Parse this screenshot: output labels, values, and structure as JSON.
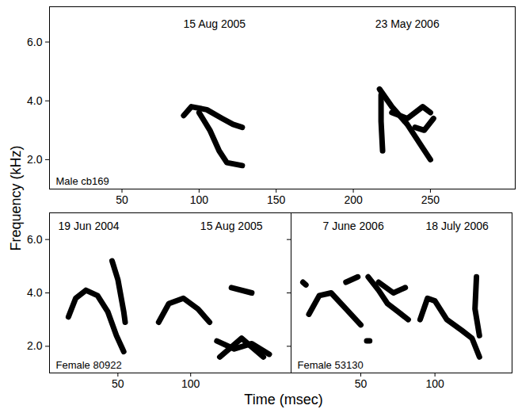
{
  "figure": {
    "x_label": "Time (msec)",
    "y_label": "Frequency (kHz)"
  },
  "chart_data": [
    {
      "type": "line",
      "label": "Male cb169",
      "color": "#000000",
      "xlim": [
        3,
        305
      ],
      "ylim": [
        1.0,
        7.2
      ],
      "xticks": [
        50,
        100,
        150,
        200,
        250
      ],
      "yticks": [
        2,
        4,
        6
      ],
      "annotations": [
        {
          "text": "15 Aug 2005",
          "x": 110,
          "y": 6.6
        },
        {
          "text": "23 May 2006",
          "x": 235,
          "y": 6.6
        }
      ],
      "traces": [
        {
          "x": [
            90,
            95,
            105,
            115,
            122,
            128
          ],
          "y": [
            3.5,
            3.8,
            3.7,
            3.4,
            3.2,
            3.1
          ]
        },
        {
          "x": [
            100,
            107,
            113,
            118,
            128
          ],
          "y": [
            3.6,
            3.0,
            2.3,
            1.9,
            1.8
          ]
        },
        {
          "x": [
            217,
            225,
            235,
            245,
            250
          ],
          "y": [
            4.4,
            3.8,
            3.2,
            2.4,
            2.0
          ]
        },
        {
          "x": [
            218,
            218,
            219
          ],
          "y": [
            4.2,
            3.3,
            2.3
          ]
        },
        {
          "x": [
            225,
            235,
            245,
            250
          ],
          "y": [
            3.6,
            3.4,
            3.8,
            3.6
          ]
        },
        {
          "x": [
            240,
            246,
            252
          ],
          "y": [
            3.1,
            3.0,
            3.4
          ]
        }
      ]
    },
    {
      "type": "line",
      "label": "Female 80922",
      "color": "#000000",
      "xlim": [
        3,
        169
      ],
      "ylim": [
        1.0,
        7.0
      ],
      "xticks": [
        50,
        100
      ],
      "yticks": [
        2,
        4,
        6
      ],
      "annotations": [
        {
          "text": "19 Jun 2004",
          "x": 30,
          "y": 6.5
        },
        {
          "text": "15 Aug 2005",
          "x": 128,
          "y": 6.5
        }
      ],
      "traces": [
        {
          "x": [
            16,
            21,
            28,
            36,
            43,
            49,
            54
          ],
          "y": [
            3.1,
            3.8,
            4.1,
            3.9,
            3.3,
            2.4,
            1.8
          ]
        },
        {
          "x": [
            46,
            50,
            54,
            55
          ],
          "y": [
            5.2,
            4.5,
            3.3,
            2.9
          ]
        },
        {
          "x": [
            78,
            85,
            95,
            105,
            113
          ],
          "y": [
            2.9,
            3.6,
            3.8,
            3.4,
            2.9
          ]
        },
        {
          "x": [
            128,
            142
          ],
          "y": [
            4.2,
            4.0
          ]
        },
        {
          "x": [
            118,
            130,
            142,
            154
          ],
          "y": [
            2.2,
            1.9,
            2.1,
            1.7
          ]
        },
        {
          "x": [
            120,
            135,
            150
          ],
          "y": [
            1.6,
            2.3,
            1.6
          ]
        }
      ]
    },
    {
      "type": "line",
      "label": "Female 53130",
      "color": "#000000",
      "tick_labels": "x",
      "xlim": [
        3,
        152
      ],
      "ylim": [
        1.0,
        7.0
      ],
      "xticks": [
        50,
        100
      ],
      "yticks": [
        2,
        4,
        6
      ],
      "annotations": [
        {
          "text": "7 June 2006",
          "x": 45,
          "y": 6.5
        },
        {
          "text": "18 July 2006",
          "x": 115,
          "y": 6.5
        }
      ],
      "traces": [
        {
          "x": [
            11,
            13
          ],
          "y": [
            4.4,
            4.3
          ]
        },
        {
          "x": [
            15,
            22,
            30,
            40,
            50
          ],
          "y": [
            3.2,
            3.9,
            4.0,
            3.4,
            2.8
          ]
        },
        {
          "x": [
            40,
            48
          ],
          "y": [
            4.4,
            4.6
          ]
        },
        {
          "x": [
            55,
            62,
            68,
            75,
            82
          ],
          "y": [
            4.6,
            4.1,
            3.6,
            3.3,
            3.0
          ]
        },
        {
          "x": [
            62,
            72,
            80
          ],
          "y": [
            4.4,
            4.0,
            4.2
          ]
        },
        {
          "x": [
            54,
            56
          ],
          "y": [
            2.2,
            2.2
          ]
        },
        {
          "x": [
            90,
            95,
            100,
            108,
            118,
            125,
            130
          ],
          "y": [
            3.0,
            3.8,
            3.7,
            3.0,
            2.6,
            2.3,
            1.6
          ]
        },
        {
          "x": [
            128,
            127,
            130
          ],
          "y": [
            4.6,
            3.4,
            2.4
          ]
        }
      ]
    }
  ]
}
